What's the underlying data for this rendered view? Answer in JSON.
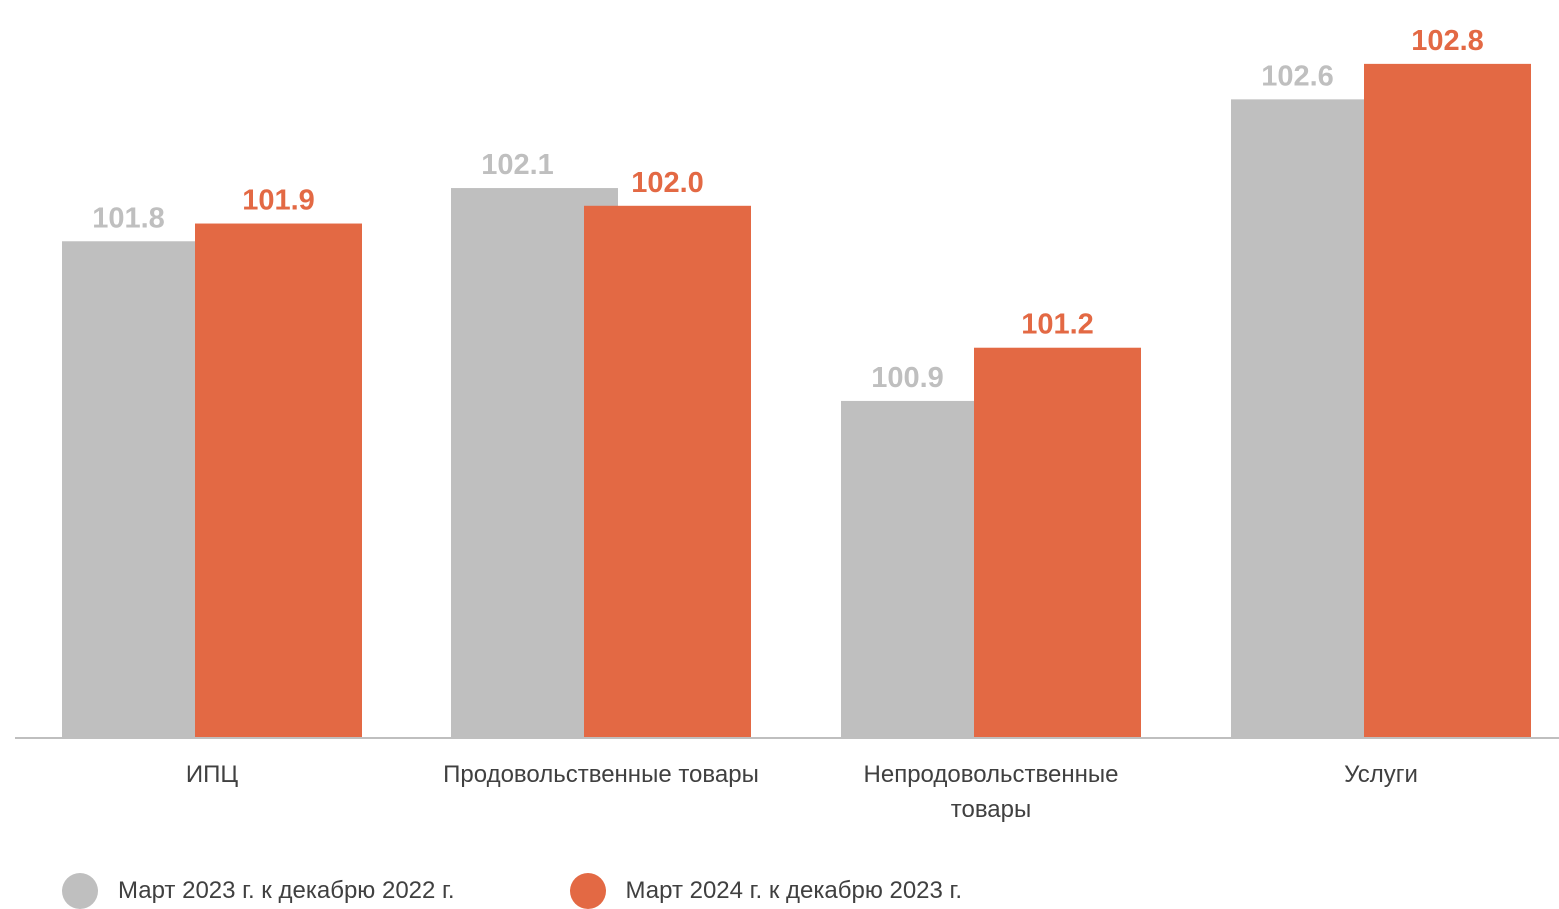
{
  "chart_data": {
    "type": "bar",
    "categories": [
      "ИПЦ",
      "Продовольственные товары",
      "Непродовольственные товары",
      "Услуги"
    ],
    "series": [
      {
        "name": "Март 2023 г. к декабрю 2022 г.",
        "values": [
          101.8,
          102.1,
          100.9,
          102.6
        ],
        "labels": [
          "101.8",
          "102.1",
          "100.9",
          "102.6"
        ],
        "color": "#bfbfbf"
      },
      {
        "name": "Март 2024 г. к декабрю 2023 г.",
        "values": [
          101.9,
          102.0,
          101.2,
          102.8
        ],
        "labels": [
          "101.9",
          "102.0",
          "101.2",
          "102.8"
        ],
        "color": "#e36944"
      }
    ],
    "ylim": [
      99.0,
      102.85
    ],
    "legend_position": "bottom-left",
    "grid": false,
    "axis_color": "#bfbfbf"
  }
}
